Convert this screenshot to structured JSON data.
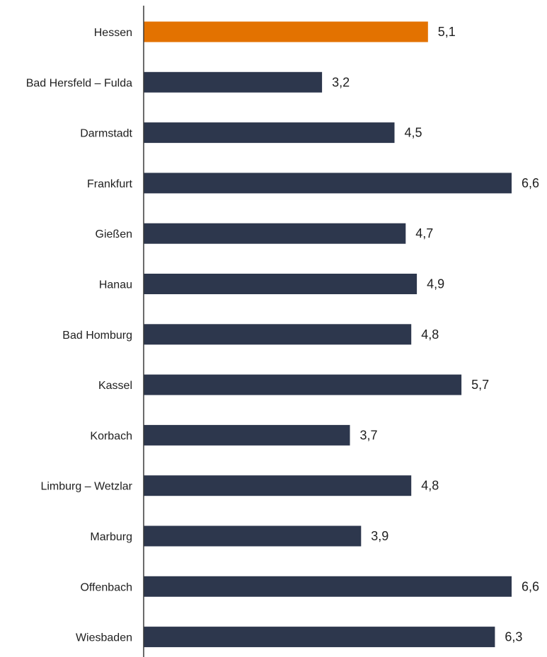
{
  "chart_data": {
    "type": "bar",
    "orientation": "horizontal",
    "categories": [
      "Hessen",
      "Bad Hersfeld – Fulda",
      "Darmstadt",
      "Frankfurt",
      "Gießen",
      "Hanau",
      "Bad Homburg",
      "Kassel",
      "Korbach",
      "Limburg – Wetzlar",
      "Marburg",
      "Offenbach",
      "Wiesbaden"
    ],
    "values": [
      5.1,
      3.2,
      4.5,
      6.6,
      4.7,
      4.9,
      4.8,
      5.7,
      3.7,
      4.8,
      3.9,
      6.6,
      6.3
    ],
    "value_labels": [
      "5,1",
      "3,2",
      "4,5",
      "6,6",
      "4,7",
      "4,9",
      "4,8",
      "5,7",
      "3,7",
      "4,8",
      "3,9",
      "6,6",
      "6,3"
    ],
    "highlight_index": 0,
    "xlim": [
      0,
      6.6
    ],
    "grid": false,
    "legend": "none",
    "colors": {
      "highlight": "#e37200",
      "bar": "#2d374d",
      "axis": "#3a3a3a",
      "text": "#1f1f1f"
    }
  }
}
